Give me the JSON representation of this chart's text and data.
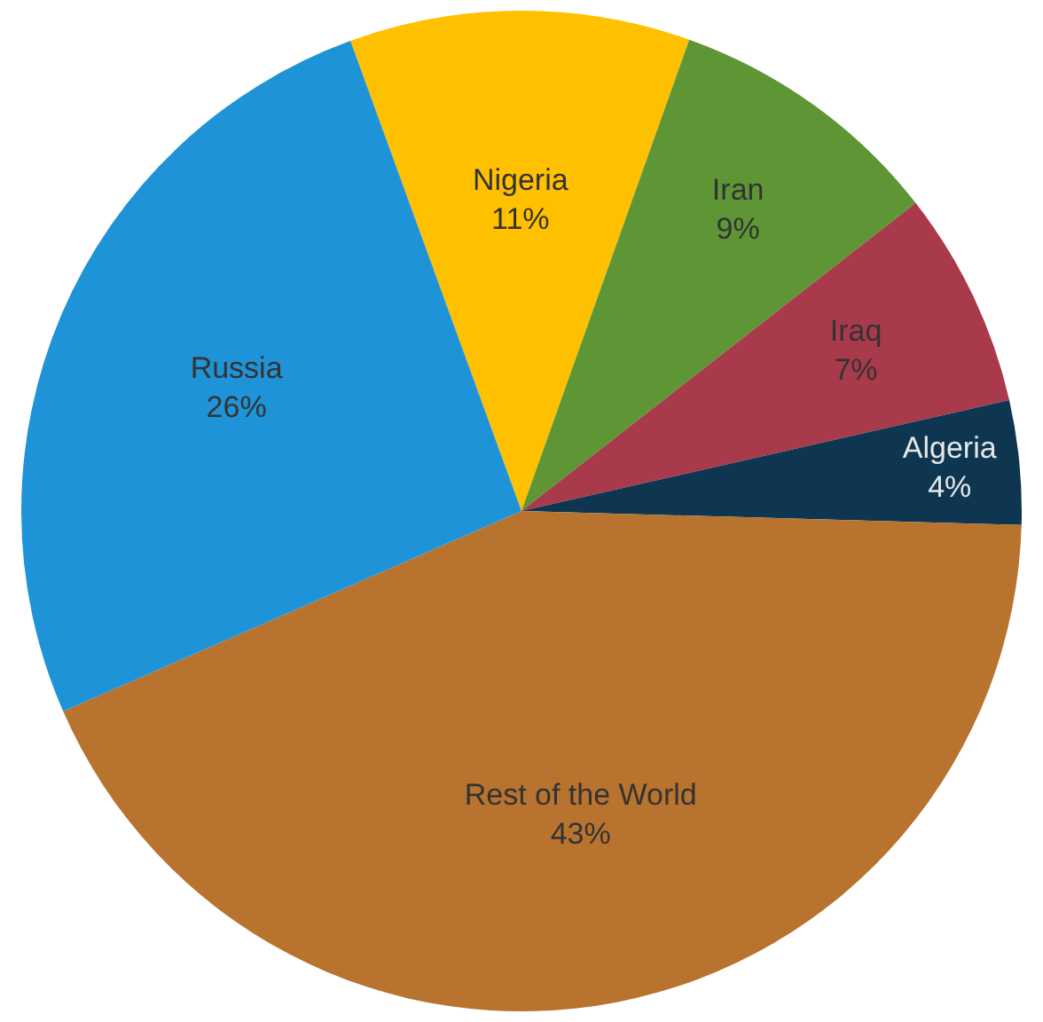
{
  "chart_data": {
    "type": "pie",
    "categories": [
      "Nigeria",
      "Iran",
      "Iraq",
      "Algeria",
      "Rest of the World",
      "Russia"
    ],
    "values": [
      11,
      9,
      7,
      4,
      43,
      26
    ],
    "value_labels": [
      "11%",
      "9%",
      "7%",
      "4%",
      "43%",
      "26%"
    ],
    "colors": [
      "#ffc000",
      "#5e9636",
      "#a83a4b",
      "#0e3651",
      "#b8732f",
      "#1f93d8"
    ],
    "legend": false
  }
}
